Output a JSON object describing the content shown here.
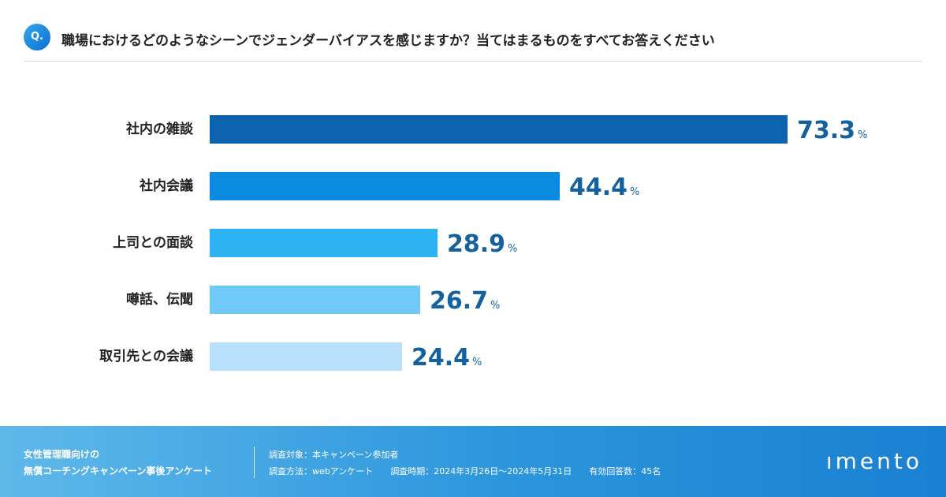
{
  "header": {
    "q_badge": "Q.",
    "question": "職場におけるどのようなシーンでジェンダーバイアスを感じますか？当てはまるものをすべてお答えください"
  },
  "chart_data": {
    "type": "bar",
    "orientation": "horizontal",
    "title": "職場におけるどのようなシーンでジェンダーバイアスを感じますか？当てはまるものをすべてお答えください",
    "categories": [
      "社内の雑談",
      "社内会議",
      "上司との面談",
      "噂話、伝聞",
      "取引先との会議"
    ],
    "values": [
      73.3,
      44.4,
      28.9,
      26.7,
      24.4
    ],
    "value_labels": [
      "73.3",
      "44.4",
      "28.9",
      "26.7",
      "24.4"
    ],
    "unit": "%",
    "xlim": [
      0,
      100
    ],
    "colors": [
      "#0d63ad",
      "#0b8be0",
      "#2db2f4",
      "#71c9f8",
      "#b6e0fb"
    ],
    "grid": false,
    "legend": "none"
  },
  "footer": {
    "survey_title_line1": "女性管理職向けの",
    "survey_title_line2": "無償コーチングキャンペーン事後アンケート",
    "target": "調査対象：本キャンペーン参加者",
    "method": "調査方法：webアンケート",
    "period": "調査時期：2024年3月26日〜2024年5月31日",
    "responses": "有効回答数：45名"
  },
  "brand": {
    "logo": "ımento",
    "accent": "#13629f"
  }
}
